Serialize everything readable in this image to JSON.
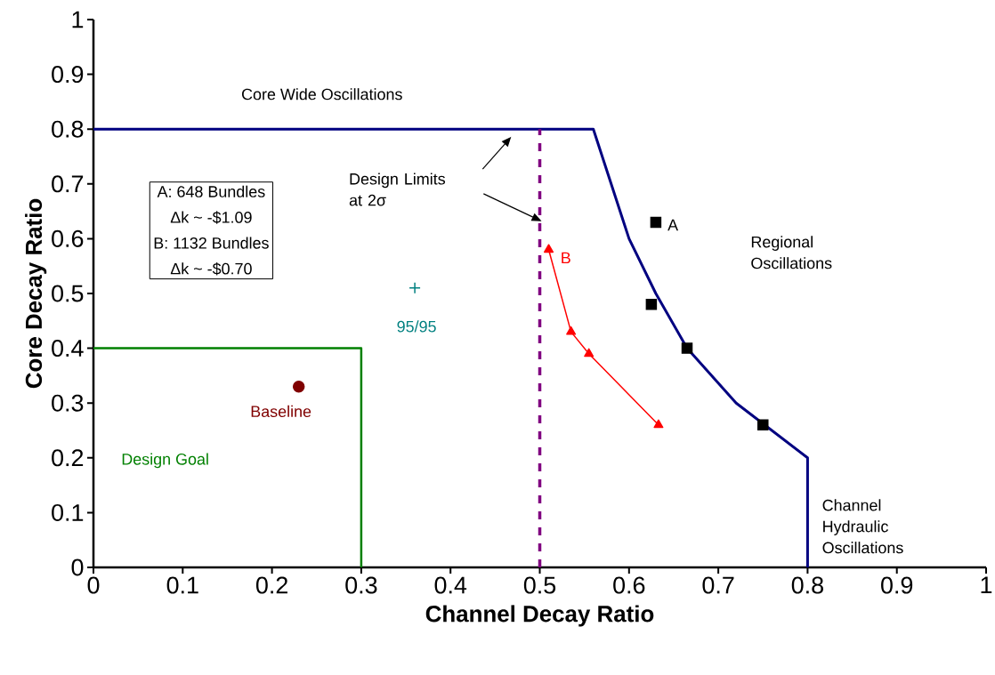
{
  "chart_data": {
    "type": "line",
    "xlabel": "Channel Decay Ratio",
    "ylabel": "Core Decay Ratio",
    "xlim": [
      0,
      1
    ],
    "ylim": [
      0,
      1
    ],
    "xticks": [
      0,
      0.1,
      0.2,
      0.3,
      0.4,
      0.5,
      0.6,
      0.7,
      0.8,
      0.9,
      1
    ],
    "yticks": [
      0,
      0.1,
      0.2,
      0.3,
      0.4,
      0.5,
      0.6,
      0.7,
      0.8,
      0.9,
      1
    ],
    "grid": false,
    "legend": false,
    "annotations": [
      "Core Wide Oscillations",
      "Design Limits at 2σ",
      "Regional Oscillations",
      "Channel Hydraulic Oscillations",
      "A: 648 Bundles",
      "Δk ~ -$1.09",
      "B: 1132 Bundles",
      "Δk ~ -$0.70"
    ],
    "series": [
      {
        "type": "line",
        "color": "#000080",
        "x": [
          0,
          0.56,
          0.6,
          0.63,
          0.665,
          0.72,
          0.8,
          0.8
        ],
        "values": [
          0.8,
          0.8,
          0.6,
          0.5,
          0.4,
          0.3,
          0.2,
          0
        ],
        "marker": "none",
        "line_style": "solid"
      },
      {
        "type": "line",
        "name": "Design Goal",
        "color": "#008000",
        "x": [
          0,
          0.3,
          0.3
        ],
        "values": [
          0.4,
          0.4,
          0
        ],
        "marker": "none",
        "line_style": "solid"
      },
      {
        "type": "line",
        "color": "#800080",
        "x": [
          0.5,
          0.5
        ],
        "values": [
          0,
          0.8
        ],
        "marker": "none",
        "line_style": "dashed"
      },
      {
        "type": "scatter",
        "name": "A",
        "color": "#000000",
        "x": [
          0.63,
          0.625,
          0.665,
          0.75
        ],
        "values": [
          0.63,
          0.48,
          0.4,
          0.26
        ],
        "marker": "square"
      },
      {
        "type": "line",
        "name": "B",
        "color": "#ff0000",
        "x": [
          0.51,
          0.535,
          0.555,
          0.633
        ],
        "values": [
          0.58,
          0.43,
          0.39,
          0.26
        ],
        "marker": "triangle",
        "line_style": "solid"
      },
      {
        "type": "scatter",
        "name": "Baseline",
        "color": "#800000",
        "x": [
          0.23
        ],
        "values": [
          0.33
        ],
        "marker": "circle"
      },
      {
        "type": "scatter",
        "name": "95/95",
        "color": "#008080",
        "x": [
          0.36
        ],
        "values": [
          0.51
        ],
        "marker": "cross"
      }
    ]
  }
}
